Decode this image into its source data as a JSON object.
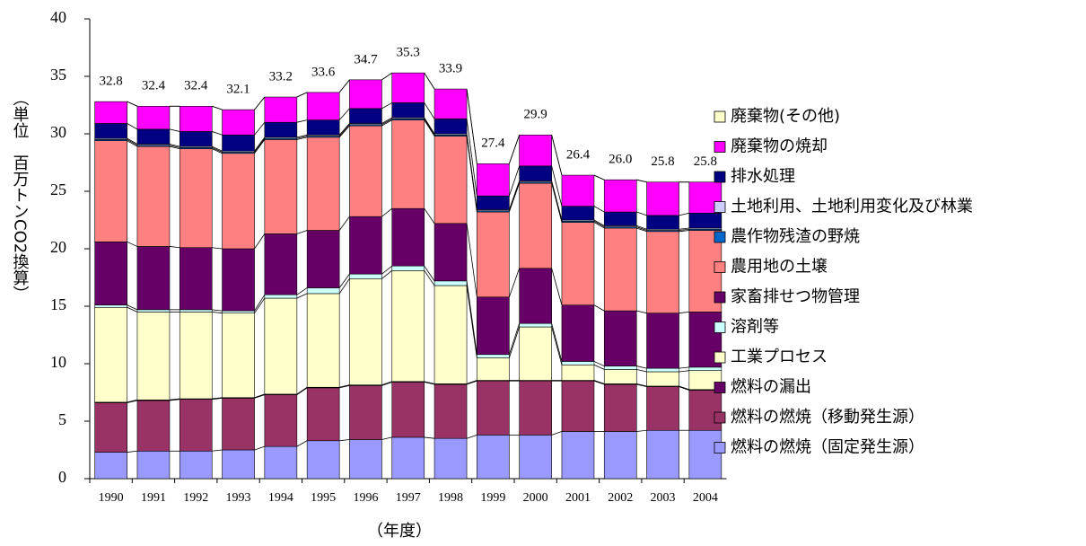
{
  "chart_data": {
    "type": "stacked_bar",
    "ylabel": "（単位　百万トンCO2換算）",
    "xlabel": "（年度）",
    "categories": [
      "1990",
      "1991",
      "1992",
      "1993",
      "1994",
      "1995",
      "1996",
      "1997",
      "1998",
      "1999",
      "2000",
      "2001",
      "2002",
      "2003",
      "2004"
    ],
    "ylim": [
      0,
      40
    ],
    "yticks": [
      0,
      5,
      10,
      15,
      20,
      25,
      30,
      35,
      40
    ],
    "series": [
      {
        "name": "燃料の燃焼（固定発生源）",
        "color": "#9999ff",
        "values": [
          2.3,
          2.4,
          2.4,
          2.5,
          2.8,
          3.3,
          3.4,
          3.6,
          3.5,
          3.8,
          3.8,
          4.1,
          4.1,
          4.2,
          4.2
        ]
      },
      {
        "name": "燃料の燃焼（移動発生源）",
        "color": "#993366",
        "values": [
          4.3,
          4.4,
          4.5,
          4.5,
          4.5,
          4.6,
          4.7,
          4.8,
          4.7,
          4.7,
          4.7,
          4.4,
          4.1,
          3.8,
          3.5
        ]
      },
      {
        "name": "燃料の漏出",
        "color": "#660066",
        "values": [
          0.05,
          0.05,
          0.05,
          0.05,
          0.05,
          0.05,
          0.05,
          0.05,
          0.05,
          0.05,
          0.05,
          0.05,
          0.05,
          0.05,
          0.05
        ]
      },
      {
        "name": "工業プロセス",
        "color": "#ffffcc",
        "values": [
          8.25,
          7.65,
          7.55,
          7.35,
          8.35,
          8.15,
          9.25,
          9.65,
          8.55,
          1.95,
          4.65,
          1.35,
          1.25,
          1.25,
          1.65
        ]
      },
      {
        "name": "溶剤等",
        "color": "#ccffff",
        "values": [
          0.2,
          0.2,
          0.2,
          0.2,
          0.3,
          0.5,
          0.4,
          0.4,
          0.4,
          0.3,
          0.3,
          0.3,
          0.3,
          0.3,
          0.3
        ]
      },
      {
        "name": "家畜排せつ物管理",
        "color": "#660066",
        "values": [
          5.5,
          5.5,
          5.4,
          5.4,
          5.3,
          5.0,
          5.0,
          5.0,
          5.0,
          5.0,
          4.8,
          4.9,
          4.8,
          4.8,
          4.8
        ]
      },
      {
        "name": "農用地の土壌",
        "color": "#ff8080",
        "values": [
          8.8,
          8.7,
          8.6,
          8.3,
          8.2,
          8.1,
          7.9,
          7.7,
          7.6,
          7.4,
          7.4,
          7.2,
          7.2,
          7.1,
          7.1
        ]
      },
      {
        "name": "農作物残渣の野焼",
        "color": "#0066cc",
        "values": [
          0.1,
          0.1,
          0.1,
          0.1,
          0.1,
          0.1,
          0.1,
          0.1,
          0.1,
          0.1,
          0.1,
          0.1,
          0.1,
          0.1,
          0.1
        ]
      },
      {
        "name": "土地利用、土地利用変化及び林業",
        "color": "#ccccff",
        "values": [
          0.1,
          0.1,
          0.1,
          0.1,
          0.1,
          0.1,
          0.1,
          0.1,
          0.1,
          0.1,
          0.1,
          0.1,
          0.1,
          0.1,
          0.1
        ]
      },
      {
        "name": "排水処理",
        "color": "#000080",
        "values": [
          1.3,
          1.3,
          1.3,
          1.4,
          1.3,
          1.3,
          1.3,
          1.3,
          1.3,
          1.2,
          1.3,
          1.2,
          1.2,
          1.2,
          1.3
        ]
      },
      {
        "name": "廃棄物の焼却",
        "color": "#ff00ff",
        "values": [
          1.9,
          2.0,
          2.2,
          2.2,
          2.2,
          2.4,
          2.5,
          2.6,
          2.6,
          2.8,
          2.7,
          2.7,
          2.8,
          2.9,
          2.7
        ]
      },
      {
        "name": "廃棄物(その他)",
        "color": "#ffffcc",
        "values": [
          0,
          0,
          0,
          0,
          0,
          0,
          0,
          0,
          0,
          0,
          0,
          0,
          0,
          0,
          0
        ]
      }
    ],
    "totals": [
      32.8,
      32.4,
      32.4,
      32.1,
      33.2,
      33.6,
      34.7,
      35.3,
      33.9,
      27.4,
      29.9,
      26.4,
      26,
      25.8,
      25.8
    ],
    "total_labels": [
      "32.8",
      "32.4",
      "32.4",
      "32.1",
      "33.2",
      "33.6",
      "34.7",
      "35.3",
      "33.9",
      "27.4",
      "29.9",
      "26.4",
      "26.0",
      "25.8",
      "25.8"
    ]
  }
}
